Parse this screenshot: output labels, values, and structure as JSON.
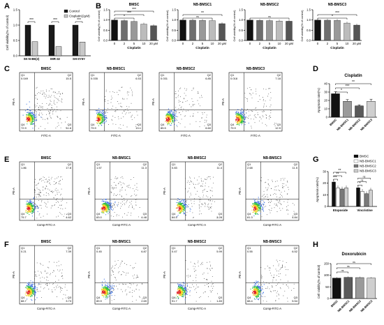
{
  "panels": {
    "A": {
      "letter": "A"
    },
    "B": {
      "letter": "B",
      "subplots": [
        "BMSC",
        "NB-BMSC1",
        "NB-BMSC2",
        "NB-BMSC3"
      ]
    },
    "C": {
      "letter": "C"
    },
    "D": {
      "letter": "D"
    },
    "E": {
      "letter": "E"
    },
    "F": {
      "letter": "F"
    },
    "G": {
      "letter": "G"
    },
    "H": {
      "letter": "H"
    }
  },
  "flow_labels": {
    "titles": [
      "BMSC",
      "NB-BMSC1",
      "NB-BMSC2",
      "NB-BMSC3"
    ],
    "ylabel": "PE-A",
    "xlabel_C": "FITC-A",
    "xlabel_EF": "Comp-FITC-A",
    "quads": [
      "Q1",
      "Q2",
      "Q3",
      "Q4"
    ]
  },
  "flow_values": {
    "C": [
      {
        "q1": "0.049",
        "q2": "15.5",
        "q3": "11.6",
        "q4": "72.9"
      },
      {
        "q1": "0.035",
        "q2": "6.53",
        "q3": "13.1",
        "q4": "79.9"
      },
      {
        "q1": "0.031",
        "q2": "6.85",
        "q3": "6.60",
        "q4": "85.5"
      },
      {
        "q1": "0.018",
        "q2": "7.18",
        "q3": "12.9",
        "q4": "79.9"
      }
    ],
    "E": [
      {
        "q1": "1.86",
        "q2": "17.8",
        "q3": "4.62",
        "q4": "75.7"
      },
      {
        "q1": "1.57",
        "q2": "11.3",
        "q3": "4.48",
        "q4": "83.0"
      },
      {
        "q1": "0.83",
        "q2": "11.4",
        "q3": "3.28",
        "q4": "84.5"
      },
      {
        "q1": "2.68",
        "q2": "11.5",
        "q3": "4.84",
        "q4": "81.3"
      }
    ],
    "F": [
      {
        "q1": "0.21",
        "q2": "7.39",
        "q3": "3.73",
        "q4": "88.7"
      },
      {
        "q1": "0.45",
        "q2": "6.87",
        "q3": "2.69",
        "q4": "89.9"
      },
      {
        "q1": "0.47",
        "q2": "5.99",
        "q3": "1.83",
        "q4": "91.7"
      },
      {
        "q1": "0.55",
        "q2": "6.52",
        "q3": "5.54",
        "q4": "88.4"
      }
    ]
  },
  "chart_data": [
    {
      "panel": "A",
      "type": "bar",
      "categories": [
        "SK-N-BE(2)",
        "IMR-32",
        "SH-SY5Y"
      ],
      "series": [
        {
          "name": "Control",
          "values": [
            1.0,
            1.0,
            1.0
          ],
          "color": "#1a1a1a"
        },
        {
          "name": "Cisplatin(2μM)",
          "values": [
            0.46,
            0.3,
            0.45
          ],
          "color": "#c8c8c8"
        }
      ],
      "ylabel": "Cell viability(% of control)",
      "ylim": [
        0,
        1.5
      ],
      "yticks": [
        "0.0",
        "0.5",
        "1.0",
        "1.5"
      ],
      "significance": [
        "***",
        "***",
        "***"
      ],
      "legend": "top-right"
    },
    {
      "panel": "B",
      "type": "bar",
      "xlabel": "Cisplatin",
      "ylabel": "Cell viability(% of control)",
      "categories": [
        "0",
        "2",
        "5",
        "10",
        "20 μM"
      ],
      "ylim": [
        0,
        1.5
      ],
      "yticks": [
        "0.0",
        "0.5",
        "1.0",
        "1.5"
      ],
      "colors": [
        "#111111",
        "#6e6e6e",
        "#999999",
        "#bcbcbc",
        "#555555"
      ],
      "series": [
        {
          "name": "BMSC",
          "values": [
            1.0,
            0.97,
            0.93,
            0.8,
            0.72
          ],
          "significance": [
            "*",
            "***",
            "***"
          ]
        },
        {
          "name": "NB-BMSC1",
          "values": [
            1.0,
            0.99,
            0.98,
            0.97,
            0.82
          ],
          "significance": [
            "ns",
            "**"
          ]
        },
        {
          "name": "NB-BMSC2",
          "values": [
            1.0,
            0.98,
            0.97,
            0.95,
            0.94
          ],
          "significance": [
            "ns"
          ]
        },
        {
          "name": "NB-BMSC3",
          "values": [
            1.0,
            0.99,
            0.98,
            0.85,
            0.75
          ],
          "significance": [
            "*",
            "***"
          ]
        }
      ]
    },
    {
      "panel": "D",
      "type": "bar",
      "title": "Cisplatin",
      "ylabel": "Apoptosis rate(%)",
      "categories": [
        "BMSC",
        "NB-BMSC1",
        "NB-BMSC2",
        "NB-BMSC3"
      ],
      "values": [
        28,
        19,
        13.5,
        19
      ],
      "errors": [
        2.5,
        2,
        1.2,
        2.5
      ],
      "colors": [
        "#111111",
        "#9a9a9a",
        "#5a5a5a",
        "#cfcfcf"
      ],
      "ylim": [
        0,
        40
      ],
      "yticks": [
        "0",
        "10",
        "20",
        "30",
        "40"
      ],
      "significance": [
        "*",
        "***",
        "**"
      ]
    },
    {
      "panel": "G",
      "type": "bar",
      "ylabel": "Apoptosis rate(%)",
      "categories": [
        "Etoposide",
        "Vincristine"
      ],
      "series": [
        {
          "name": "BMSC",
          "values": [
            21,
            16
          ],
          "color": "#111111"
        },
        {
          "name": "NB-BMSC1",
          "values": [
            16,
            13
          ],
          "color": "#ffffff"
        },
        {
          "name": "NB-BMSC2",
          "values": [
            15,
            11
          ],
          "color": "#7a7a7a"
        },
        {
          "name": "NB-BMSC3",
          "values": [
            16,
            14
          ],
          "color": "#d0d0d0"
        }
      ],
      "ylim": [
        0,
        30
      ],
      "yticks": [
        "0",
        "10",
        "20",
        "30"
      ],
      "significance": [
        "**",
        "**",
        "**",
        "*",
        "ns",
        "ns"
      ],
      "legend": "top-right"
    },
    {
      "panel": "H",
      "type": "bar",
      "title": "Doxorubicin",
      "ylabel": "Cell viability(% of control)",
      "categories": [
        "BMSC",
        "NB-BMSC1",
        "NB-BMSC2",
        "NB-BMSC3"
      ],
      "values": [
        88,
        91,
        90,
        88
      ],
      "colors": [
        "#111111",
        "#5a5a5a",
        "#9a9a9a",
        "#cfcfcf"
      ],
      "ylim": [
        0,
        150
      ],
      "yticks": [
        "0",
        "50",
        "100",
        "150"
      ],
      "significance": [
        "ns",
        "ns",
        "ns"
      ]
    }
  ]
}
